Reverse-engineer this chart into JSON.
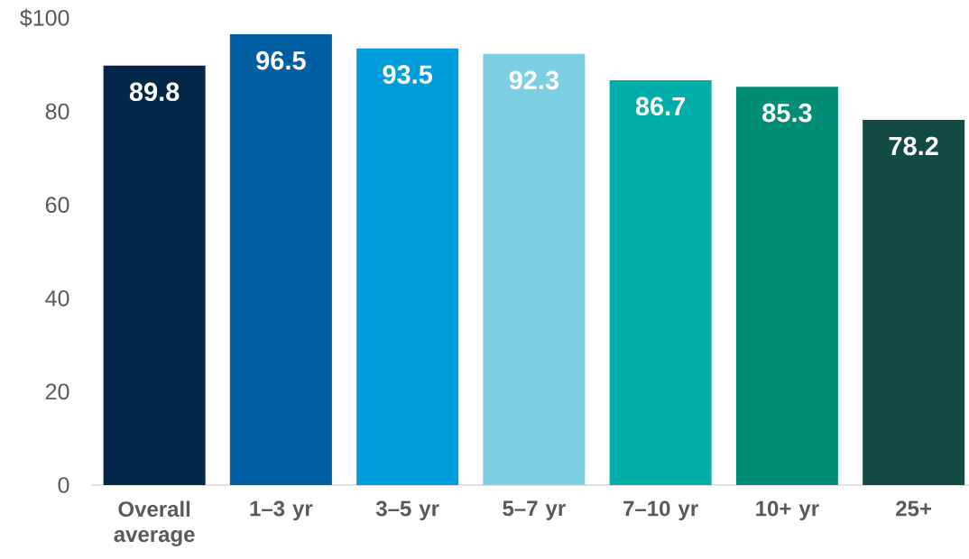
{
  "chart_data": {
    "type": "bar",
    "categories": [
      "Overall average",
      "1–3 yr",
      "3–5 yr",
      "5–7 yr",
      "7–10 yr",
      "10+ yr",
      "25+"
    ],
    "values": [
      89.8,
      96.5,
      93.5,
      92.3,
      86.7,
      85.3,
      78.2
    ],
    "colors": [
      "#022748",
      "#005EA2",
      "#009DDC",
      "#7DD0E2",
      "#00ADA8",
      "#008D76",
      "#144A45"
    ],
    "ylim": [
      0,
      100
    ],
    "yticks": [
      0,
      20,
      40,
      60,
      80,
      {
        "value": 100,
        "label": "$100"
      }
    ],
    "data_labels": true
  }
}
